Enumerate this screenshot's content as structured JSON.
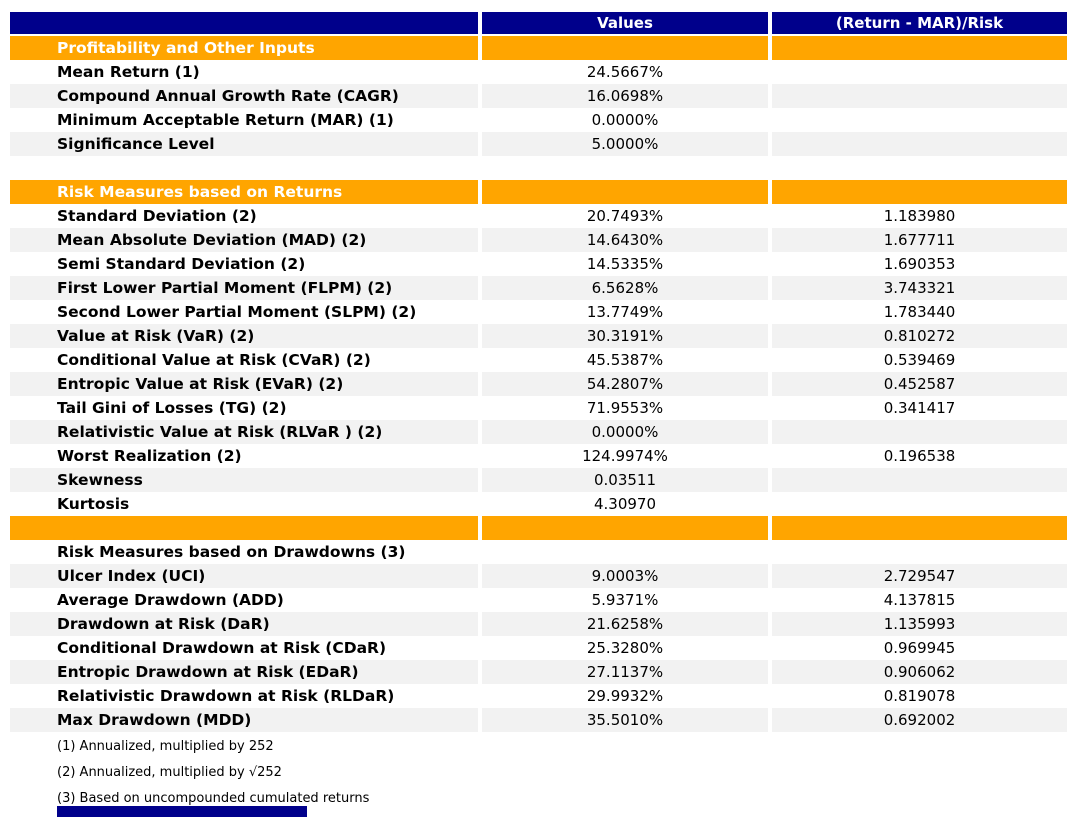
{
  "report": {
    "columns": {
      "values": "Values",
      "ratio": "(Return - MAR)/Risk"
    },
    "sections": {
      "profitability": {
        "title": "Profitability and Other Inputs",
        "rows": [
          {
            "label": "Mean Return (1)",
            "value": "24.5667%",
            "ratio": ""
          },
          {
            "label": "Compound Annual Growth Rate (CAGR)",
            "value": "16.0698%",
            "ratio": ""
          },
          {
            "label": "Minimum Acceptable Return (MAR) (1)",
            "value": "0.0000%",
            "ratio": ""
          },
          {
            "label": "Significance Level",
            "value": "5.0000%",
            "ratio": ""
          }
        ]
      },
      "returns": {
        "title": "Risk Measures based on Returns",
        "rows": [
          {
            "label": "Standard Deviation (2)",
            "value": "20.7493%",
            "ratio": "1.183980"
          },
          {
            "label": "Mean Absolute Deviation (MAD) (2)",
            "value": "14.6430%",
            "ratio": "1.677711"
          },
          {
            "label": "Semi Standard Deviation (2)",
            "value": "14.5335%",
            "ratio": "1.690353"
          },
          {
            "label": "First Lower Partial Moment (FLPM) (2)",
            "value": "6.5628%",
            "ratio": "3.743321"
          },
          {
            "label": "Second Lower Partial Moment (SLPM) (2)",
            "value": "13.7749%",
            "ratio": "1.783440"
          },
          {
            "label": "Value at Risk (VaR) (2)",
            "value": "30.3191%",
            "ratio": "0.810272"
          },
          {
            "label": "Conditional Value at Risk (CVaR) (2)",
            "value": "45.5387%",
            "ratio": "0.539469"
          },
          {
            "label": "Entropic Value at Risk (EVaR) (2)",
            "value": "54.2807%",
            "ratio": "0.452587"
          },
          {
            "label": "Tail Gini of Losses (TG) (2)",
            "value": "71.9553%",
            "ratio": "0.341417"
          },
          {
            "label": "Relativistic Value at Risk (RLVaR ) (2)",
            "value": "0.0000%",
            "ratio": ""
          },
          {
            "label": "Worst Realization (2)",
            "value": "124.9974%",
            "ratio": "0.196538"
          },
          {
            "label": "Skewness",
            "value": "0.03511",
            "ratio": ""
          },
          {
            "label": "Kurtosis",
            "value": "4.30970",
            "ratio": ""
          }
        ]
      },
      "drawdowns": {
        "title": "Risk Measures based on Drawdowns (3)",
        "rows": [
          {
            "label": "Ulcer Index (UCI)",
            "value": "9.0003%",
            "ratio": "2.729547"
          },
          {
            "label": "Average Drawdown (ADD)",
            "value": "5.9371%",
            "ratio": "4.137815"
          },
          {
            "label": "Drawdown at Risk (DaR)",
            "value": "21.6258%",
            "ratio": "1.135993"
          },
          {
            "label": "Conditional Drawdown at Risk (CDaR)",
            "value": "25.3280%",
            "ratio": "0.969945"
          },
          {
            "label": "Entropic Drawdown at Risk (EDaR)",
            "value": "27.1137%",
            "ratio": "0.906062"
          },
          {
            "label": "Relativistic Drawdown at Risk (RLDaR)",
            "value": "29.9932%",
            "ratio": "0.819078"
          },
          {
            "label": "Max Drawdown (MDD)",
            "value": "35.5010%",
            "ratio": "0.692002"
          }
        ]
      }
    },
    "footnotes": [
      "(1) Annualized, multiplied by 252",
      "(2) Annualized, multiplied by √252",
      "(3) Based on uncompounded cumulated returns"
    ],
    "colors": {
      "header_navy": "#00008B",
      "section_orange": "#FFA500",
      "stripe_gray": "#F2F2F2"
    }
  },
  "chart_data": {
    "type": "table",
    "title": "Portfolio risk report",
    "columns": [
      "",
      "Values",
      "(Return - MAR)/Risk"
    ],
    "rows": [
      [
        "Profitability and Other Inputs",
        "",
        ""
      ],
      [
        "Mean Return (1)",
        "24.5667%",
        ""
      ],
      [
        "Compound Annual Growth Rate (CAGR)",
        "16.0698%",
        ""
      ],
      [
        "Minimum Acceptable Return (MAR) (1)",
        "0.0000%",
        ""
      ],
      [
        "Significance Level",
        "5.0000%",
        ""
      ],
      [
        "Risk Measures based on Returns",
        "",
        ""
      ],
      [
        "Standard Deviation (2)",
        "20.7493%",
        "1.183980"
      ],
      [
        "Mean Absolute Deviation (MAD) (2)",
        "14.6430%",
        "1.677711"
      ],
      [
        "Semi Standard Deviation (2)",
        "14.5335%",
        "1.690353"
      ],
      [
        "First Lower Partial Moment (FLPM) (2)",
        "6.5628%",
        "3.743321"
      ],
      [
        "Second Lower Partial Moment (SLPM) (2)",
        "13.7749%",
        "1.783440"
      ],
      [
        "Value at Risk (VaR) (2)",
        "30.3191%",
        "0.810272"
      ],
      [
        "Conditional Value at Risk (CVaR) (2)",
        "45.5387%",
        "0.539469"
      ],
      [
        "Entropic Value at Risk (EVaR) (2)",
        "54.2807%",
        "0.452587"
      ],
      [
        "Tail Gini of Losses (TG) (2)",
        "71.9553%",
        "0.341417"
      ],
      [
        "Relativistic Value at Risk (RLVaR ) (2)",
        "0.0000%",
        ""
      ],
      [
        "Worst Realization (2)",
        "124.9974%",
        "0.196538"
      ],
      [
        "Skewness",
        "0.03511",
        ""
      ],
      [
        "Kurtosis",
        "4.30970",
        ""
      ],
      [
        "Risk Measures based on Drawdowns (3)",
        "",
        ""
      ],
      [
        "Ulcer Index (UCI)",
        "9.0003%",
        "2.729547"
      ],
      [
        "Average Drawdown (ADD)",
        "5.9371%",
        "4.137815"
      ],
      [
        "Drawdown at Risk (DaR)",
        "21.6258%",
        "1.135993"
      ],
      [
        "Conditional Drawdown at Risk (CDaR)",
        "25.3280%",
        "0.969945"
      ],
      [
        "Entropic Drawdown at Risk (EDaR)",
        "27.1137%",
        "0.906062"
      ],
      [
        "Relativistic Drawdown at Risk (RLDaR)",
        "29.9932%",
        "0.819078"
      ],
      [
        "Max Drawdown (MDD)",
        "35.5010%",
        "0.692002"
      ]
    ],
    "footnotes": [
      "(1) Annualized, multiplied by 252",
      "(2) Annualized, multiplied by √252",
      "(3) Based on uncompounded cumulated returns"
    ],
    "layout_hints": {
      "striped_rows": true,
      "header_color": "#00008B",
      "section_color": "#FFA500"
    }
  }
}
